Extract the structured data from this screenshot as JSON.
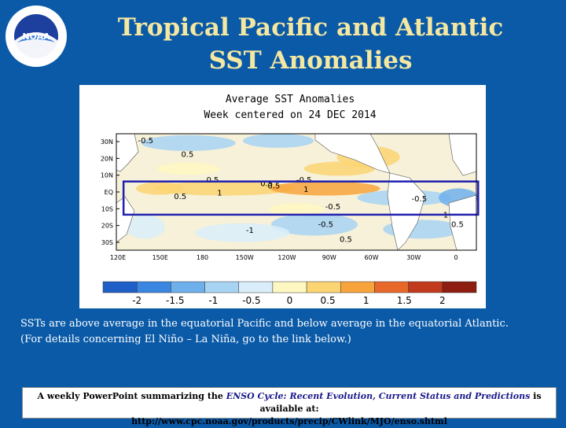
{
  "title": {
    "line1": "Tropical Pacific and Atlantic",
    "line2": "SST Anomalies"
  },
  "logo": {
    "text": "NOAA",
    "ring_text": "NATIONAL OCEANIC AND ATMOSPHERIC ADMINISTRATION • U.S. DEPARTMENT OF COMMERCE"
  },
  "map": {
    "title_line1": "Average SST Anomalies",
    "title_line2": "Week centered on 24 DEC 2014",
    "lat_labels": [
      "30N",
      "20N",
      "10N",
      "EQ",
      "10S",
      "20S",
      "30S"
    ],
    "lon_labels": [
      "120E",
      "150E",
      "180",
      "150W",
      "120W",
      "90W",
      "60W",
      "30W",
      "0"
    ],
    "contour_labels": [
      "-0.5",
      "0.5",
      "0.5",
      "1",
      "0.5",
      "0.5",
      "1",
      "-0.5",
      "-0.5",
      "-0.5",
      "-1",
      "-0.5",
      "0.5",
      "-1",
      "0.5",
      "0.5"
    ],
    "colorbar_labels": [
      "-2",
      "-1.5",
      "-1",
      "-0.5",
      "0",
      "0.5",
      "1",
      "1.5",
      "2"
    ],
    "colorbar_colors": [
      "#1f5fc7",
      "#3a86e0",
      "#6fb0ec",
      "#a8d4f4",
      "#d9eefa",
      "#fff7c2",
      "#fcd573",
      "#f7a43c",
      "#e8682a",
      "#c23a1e",
      "#8c1d10"
    ],
    "highlight_box_color": "#2020b0"
  },
  "caption": {
    "line1": "SSTs are above average in the equatorial Pacific and below average in the equatorial Atlantic.",
    "line2": "(For details concerning El Niño – La Niña, go to the link below.)"
  },
  "footer": {
    "prefix": "A weekly PowerPoint summarizing the ",
    "italic": "ENSO Cycle: Recent Evolution, Current Status and Predictions",
    "suffix": " is available at:",
    "url": "http://www.cpc.noaa.gov/products/precip/CWlink/MJO/enso.shtml"
  }
}
